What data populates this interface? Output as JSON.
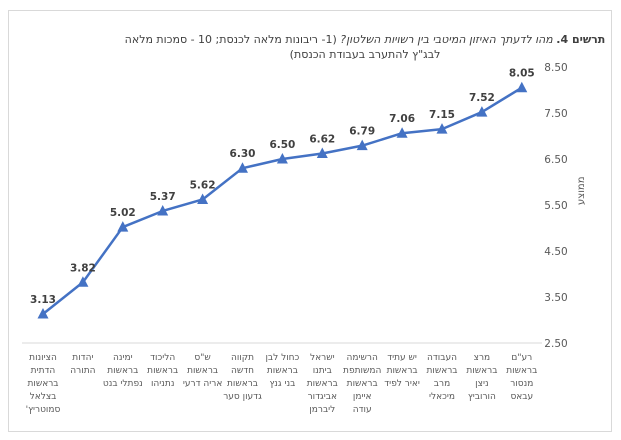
{
  "chart_data": {
    "type": "line",
    "title_bold": "תרשים 4.",
    "title_italic": "מהו לדעתך האיזון המיטבי בין רשויות השלטון?",
    "title_rest": "(1- ריבונות מלאה לכנסת; 10 - סמכות מלאה לבג\"ץ להתערב בעבודת הכנסת)",
    "ylabel": "ממוצע",
    "xlabel": "",
    "ylim": [
      2.5,
      8.5
    ],
    "yticks": [
      "2.50",
      "3.50",
      "4.50",
      "5.50",
      "6.50",
      "7.50",
      "8.50"
    ],
    "y_axis_side": "right",
    "grid": false,
    "color": "#4472c4",
    "marker": "triangle",
    "categories": [
      "הציונות הדתית בראשות בצלאל סמוטריץ'",
      "יהדות התורה",
      "ימינה בראשות נפתלי בנט",
      "הליכוד בראשות נתניהו",
      "ש\"ס בראשות אריה דרעי",
      "תקווה חדשה בראשות גדעון סער",
      "כחול לבן בראשות בני גנץ",
      "ישראל ביתנו בראשות אביגדור ליברמן",
      "הרשימה המשותפת בראשות איימן עודה",
      "יש עתיד בראשות יאיר לפיד",
      "העבודה בראשות מרב מיכאלי",
      "מרצ בראשות ניצן הורוביץ",
      "רע\"ם בראשות מנסור עבאס"
    ],
    "values": [
      3.13,
      3.82,
      5.02,
      5.37,
      5.62,
      6.3,
      6.5,
      6.62,
      6.79,
      7.06,
      7.15,
      7.52,
      8.05
    ],
    "value_labels": [
      "3.13",
      "3.82",
      "5.02",
      "5.37",
      "5.62",
      "6.30",
      "6.50",
      "6.62",
      "6.79",
      "7.06",
      "7.15",
      "7.52",
      "8.05"
    ]
  }
}
